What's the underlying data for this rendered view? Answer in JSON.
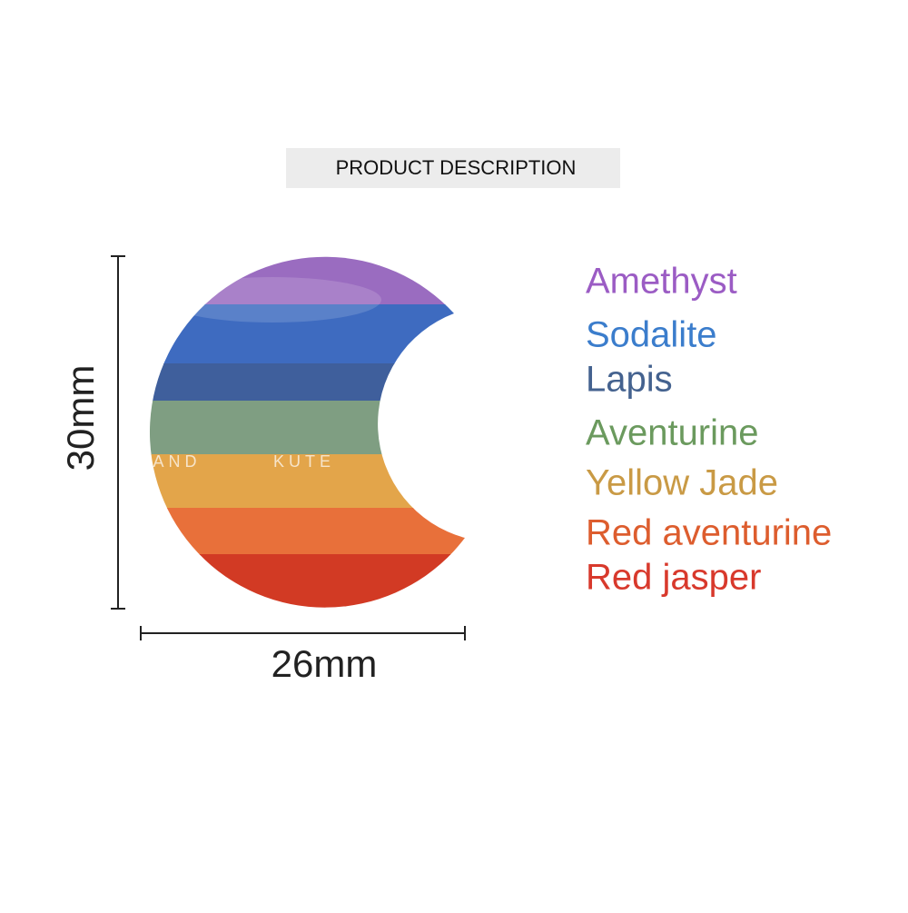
{
  "header": {
    "title": "PRODUCT DESCRIPTION"
  },
  "dimensions": {
    "height": "30mm",
    "width": "26mm"
  },
  "watermark": [
    "AND",
    "KUTE"
  ],
  "stones": [
    {
      "name": "Amethyst",
      "color": "#9b5cc4"
    },
    {
      "name": "Sodalite",
      "color": "#3b7dcc"
    },
    {
      "name": "Lapis",
      "color": "#44628f"
    },
    {
      "name": "Aventurine",
      "color": "#6b9a5e"
    },
    {
      "name": "Yellow Jade",
      "color": "#c99a45"
    },
    {
      "name": "Red aventurine",
      "color": "#dd5d2e"
    },
    {
      "name": "Red jasper",
      "color": "#d8392c"
    }
  ]
}
